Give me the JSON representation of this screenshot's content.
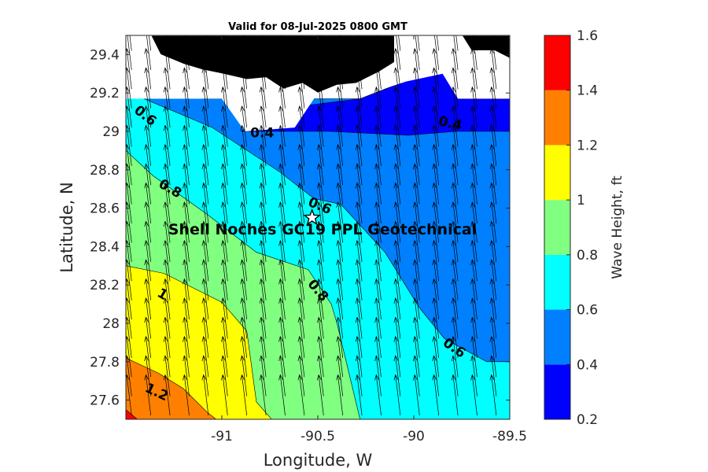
{
  "title": "Valid for 08-Jul-2025 0800 GMT",
  "xlabel": "Longitude, W",
  "ylabel": "Latitude, N",
  "colorbar_label": "Wave Height, ft",
  "site_label": "Shell Noches   GC19 PPL  Geotechnical",
  "x_ticks": [
    {
      "value": -91,
      "label": "-91"
    },
    {
      "value": -90.5,
      "label": "-90.5"
    },
    {
      "value": -90,
      "label": "-90"
    },
    {
      "value": -89.5,
      "label": "-89.5"
    }
  ],
  "y_ticks": [
    {
      "value": 27.6,
      "label": "27.6"
    },
    {
      "value": 27.8,
      "label": "27.8"
    },
    {
      "value": 28,
      "label": "28"
    },
    {
      "value": 28.2,
      "label": "28.2"
    },
    {
      "value": 28.4,
      "label": "28.4"
    },
    {
      "value": 28.6,
      "label": "28.6"
    },
    {
      "value": 28.8,
      "label": "28.8"
    },
    {
      "value": 29,
      "label": "29"
    },
    {
      "value": 29.2,
      "label": "29.2"
    },
    {
      "value": 29.4,
      "label": "29.4"
    }
  ],
  "colorbar_ticks": [
    {
      "value": 0.2,
      "label": "0.2"
    },
    {
      "value": 0.4,
      "label": "0.4"
    },
    {
      "value": 0.6,
      "label": "0.6"
    },
    {
      "value": 0.8,
      "label": "0.8"
    },
    {
      "value": 1.0,
      "label": "1"
    },
    {
      "value": 1.2,
      "label": "1.2"
    },
    {
      "value": 1.4,
      "label": "1.4"
    },
    {
      "value": 1.6,
      "label": "1.6"
    }
  ],
  "chart_data": {
    "type": "contour",
    "xlim": [
      -91.5,
      -89.5
    ],
    "ylim": [
      27.5,
      29.5
    ],
    "grid": false,
    "legend": "colorbar-right",
    "colors": {
      "band_0.2_0.4": "#0000ff",
      "band_0.4_0.6": "#0080ff",
      "band_0.6_0.8": "#00ffff",
      "band_0.8_1.0": "#80ff80",
      "band_1.0_1.2": "#ffff00",
      "band_1.2_1.4": "#ff8000",
      "band_1.4_1.6": "#ff0000",
      "land": "#000000",
      "no_data": "#ffffff"
    },
    "bands": [
      {
        "min": 1.4,
        "max": 1.6,
        "polygon": [
          [
            -91.5,
            27.5
          ],
          [
            -91.44,
            27.5
          ],
          [
            -91.5,
            27.55
          ]
        ]
      },
      {
        "min": 1.2,
        "max": 1.4,
        "polygon": [
          [
            -91.5,
            27.5
          ],
          [
            -91.03,
            27.5
          ],
          [
            -91.08,
            27.54
          ],
          [
            -91.2,
            27.66
          ],
          [
            -91.33,
            27.74
          ],
          [
            -91.5,
            27.82
          ]
        ]
      },
      {
        "min": 1.0,
        "max": 1.2,
        "polygon": [
          [
            -91.5,
            27.5
          ],
          [
            -90.74,
            27.5
          ],
          [
            -90.82,
            27.59
          ],
          [
            -90.87,
            27.96
          ],
          [
            -91.0,
            28.11
          ],
          [
            -91.3,
            28.26
          ],
          [
            -91.5,
            28.3
          ]
        ]
      },
      {
        "min": 0.8,
        "max": 1.0,
        "polygon": [
          [
            -91.5,
            27.5
          ],
          [
            -90.28,
            27.5
          ],
          [
            -90.4,
            28.0
          ],
          [
            -90.43,
            28.1
          ],
          [
            -90.55,
            28.28
          ],
          [
            -90.82,
            28.37
          ],
          [
            -91.08,
            28.57
          ],
          [
            -91.36,
            28.77
          ],
          [
            -91.5,
            28.9
          ]
        ]
      },
      {
        "min": 0.6,
        "max": 0.8,
        "polygon": [
          [
            -91.5,
            27.5
          ],
          [
            -89.5,
            27.5
          ],
          [
            -89.5,
            27.8
          ],
          [
            -89.62,
            27.8
          ],
          [
            -89.84,
            27.92
          ],
          [
            -89.97,
            28.08
          ],
          [
            -90.15,
            28.37
          ],
          [
            -90.38,
            28.62
          ],
          [
            -90.52,
            28.65
          ],
          [
            -90.7,
            28.79
          ],
          [
            -91.05,
            29.02
          ],
          [
            -91.5,
            29.21
          ]
        ]
      },
      {
        "min": 0.4,
        "max": 0.6,
        "polygon": [
          [
            -91.5,
            27.5
          ],
          [
            -89.5,
            27.5
          ],
          [
            -89.5,
            29.17
          ],
          [
            -91.1,
            29.17
          ],
          [
            -91.5,
            29.5
          ]
        ]
      },
      {
        "min": 0.2,
        "max": 0.4,
        "polygon": [
          [
            -90.9,
            29.0
          ],
          [
            -90.44,
            29.0
          ],
          [
            -90.03,
            28.98
          ],
          [
            -89.78,
            29.0
          ],
          [
            -89.5,
            29.0
          ],
          [
            -89.5,
            29.17
          ],
          [
            -89.77,
            29.17
          ],
          [
            -89.85,
            29.32
          ],
          [
            -90.05,
            29.26
          ],
          [
            -90.28,
            29.17
          ],
          [
            -90.68,
            29.12
          ]
        ]
      }
    ],
    "no_data": [
      [
        [
          -91.5,
          29.17
        ],
        [
          -91.0,
          29.17
        ],
        [
          -90.88,
          29.0
        ],
        [
          -90.62,
          29.02
        ],
        [
          -90.5,
          29.2
        ],
        [
          -90.28,
          29.18
        ],
        [
          -90.04,
          29.26
        ],
        [
          -89.85,
          29.3
        ],
        [
          -89.77,
          29.17
        ],
        [
          -89.5,
          29.17
        ],
        [
          -89.5,
          29.5
        ],
        [
          -91.5,
          29.5
        ]
      ]
    ],
    "land": [
      [
        [
          -91.37,
          29.5
        ],
        [
          -91.32,
          29.4
        ],
        [
          -91.2,
          29.35
        ],
        [
          -91.1,
          29.32
        ],
        [
          -91.0,
          29.3
        ],
        [
          -90.87,
          29.27
        ],
        [
          -90.77,
          29.28
        ],
        [
          -90.68,
          29.22
        ],
        [
          -90.58,
          29.25
        ],
        [
          -90.5,
          29.2
        ],
        [
          -90.4,
          29.24
        ],
        [
          -90.3,
          29.25
        ],
        [
          -90.18,
          29.31
        ],
        [
          -90.1,
          29.36
        ],
        [
          -90.1,
          29.5
        ]
      ],
      [
        [
          -89.75,
          29.5
        ],
        [
          -89.7,
          29.42
        ],
        [
          -89.58,
          29.42
        ],
        [
          -89.5,
          29.38
        ],
        [
          -89.5,
          29.5
        ]
      ]
    ],
    "contour_labels": [
      {
        "text": "0.6",
        "x": -91.4,
        "y": 29.08,
        "angle": 38
      },
      {
        "text": "0.4",
        "x": -90.79,
        "y": 28.99,
        "angle": 0
      },
      {
        "text": "0.4",
        "x": -89.81,
        "y": 29.04,
        "angle": 12
      },
      {
        "text": "0.8",
        "x": -91.27,
        "y": 28.7,
        "angle": 30
      },
      {
        "text": "0.6",
        "x": -90.49,
        "y": 28.61,
        "angle": 22
      },
      {
        "text": "0.8",
        "x": -90.5,
        "y": 28.17,
        "angle": 50
      },
      {
        "text": "1",
        "x": -91.31,
        "y": 28.15,
        "angle": 30
      },
      {
        "text": "0.6",
        "x": -89.79,
        "y": 27.87,
        "angle": 35
      },
      {
        "text": "1.2",
        "x": -91.34,
        "y": 27.64,
        "angle": 25
      }
    ],
    "site": {
      "x": -90.53,
      "y": 28.55,
      "symbol": "star"
    },
    "wave_direction": {
      "from": "south-southeast",
      "vector": [
        -0.12,
        0.99
      ],
      "grid_spacing_deg": 0.1
    }
  }
}
